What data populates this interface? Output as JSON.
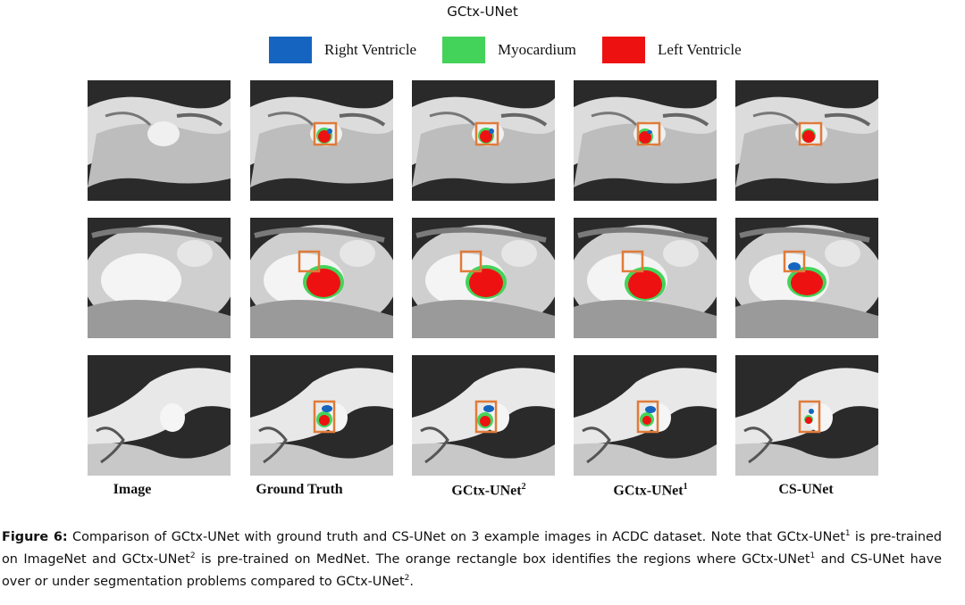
{
  "figure": {
    "header_title": "GCtx-UNet",
    "legend": [
      {
        "label": "Right Ventricle",
        "color": "#1565c0"
      },
      {
        "label": "Myocardium",
        "color": "#44d35a"
      },
      {
        "label": "Left Ventricle",
        "color": "#ee1111"
      }
    ],
    "columns": [
      {
        "name": "Image",
        "sup": ""
      },
      {
        "name": "Ground Truth",
        "sup": ""
      },
      {
        "name": "GCtx-UNet",
        "sup": "2"
      },
      {
        "name": "GCtx-UNet",
        "sup": "1"
      },
      {
        "name": "CS-UNet",
        "sup": ""
      }
    ],
    "box_color": "#e07b39",
    "rows": 3
  },
  "caption": {
    "label": "Figure 6:",
    "part1": " Comparison of GCtx-UNet with ground truth and CS-UNet on 3 example images in ACDC dataset. Note that GCtx-UNet",
    "sup1": "1",
    "part2": " is pre-trained on ImageNet and GCtx-UNet",
    "sup2": "2",
    "part3": " is pre-trained on MedNet. The orange rectangle box identifies the regions where GCtx-UNet",
    "sup3": "1",
    "part4": " and CS-UNet have over or under segmentation problems compared to GCtx-UNet",
    "sup4": "2",
    "part5": "."
  }
}
